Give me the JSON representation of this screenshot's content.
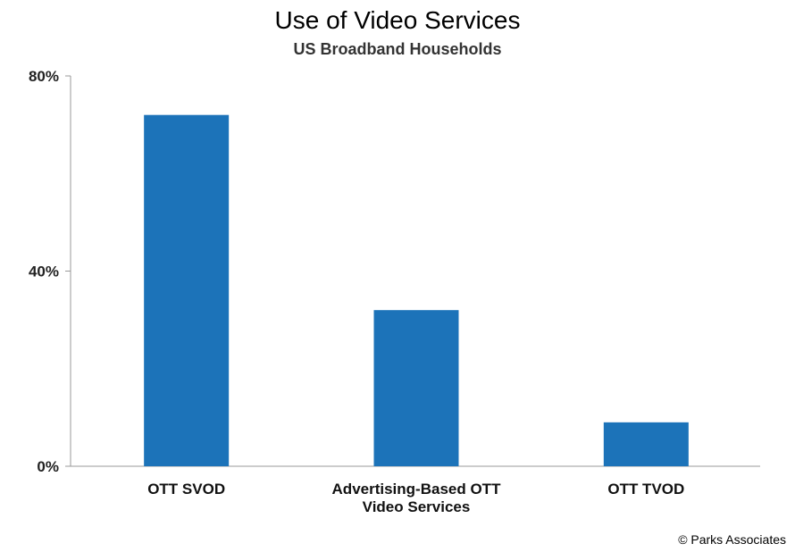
{
  "chart_data": {
    "type": "bar",
    "title": "Use of Video Services",
    "subtitle": "US Broadband Households",
    "categories": [
      [
        "OTT SVOD"
      ],
      [
        "Advertising-Based OTT",
        "Video Services"
      ],
      [
        "OTT TVOD"
      ]
    ],
    "values": [
      72,
      32,
      9
    ],
    "ylim": [
      0,
      80
    ],
    "yticks": [
      0,
      40,
      80
    ],
    "ytick_labels": [
      "0%",
      "40%",
      "80%"
    ],
    "xlabel": "",
    "ylabel": "",
    "grid": false,
    "bar_color": "#1c73b9",
    "axis_color": "#999999"
  },
  "source": "© Parks Associates"
}
